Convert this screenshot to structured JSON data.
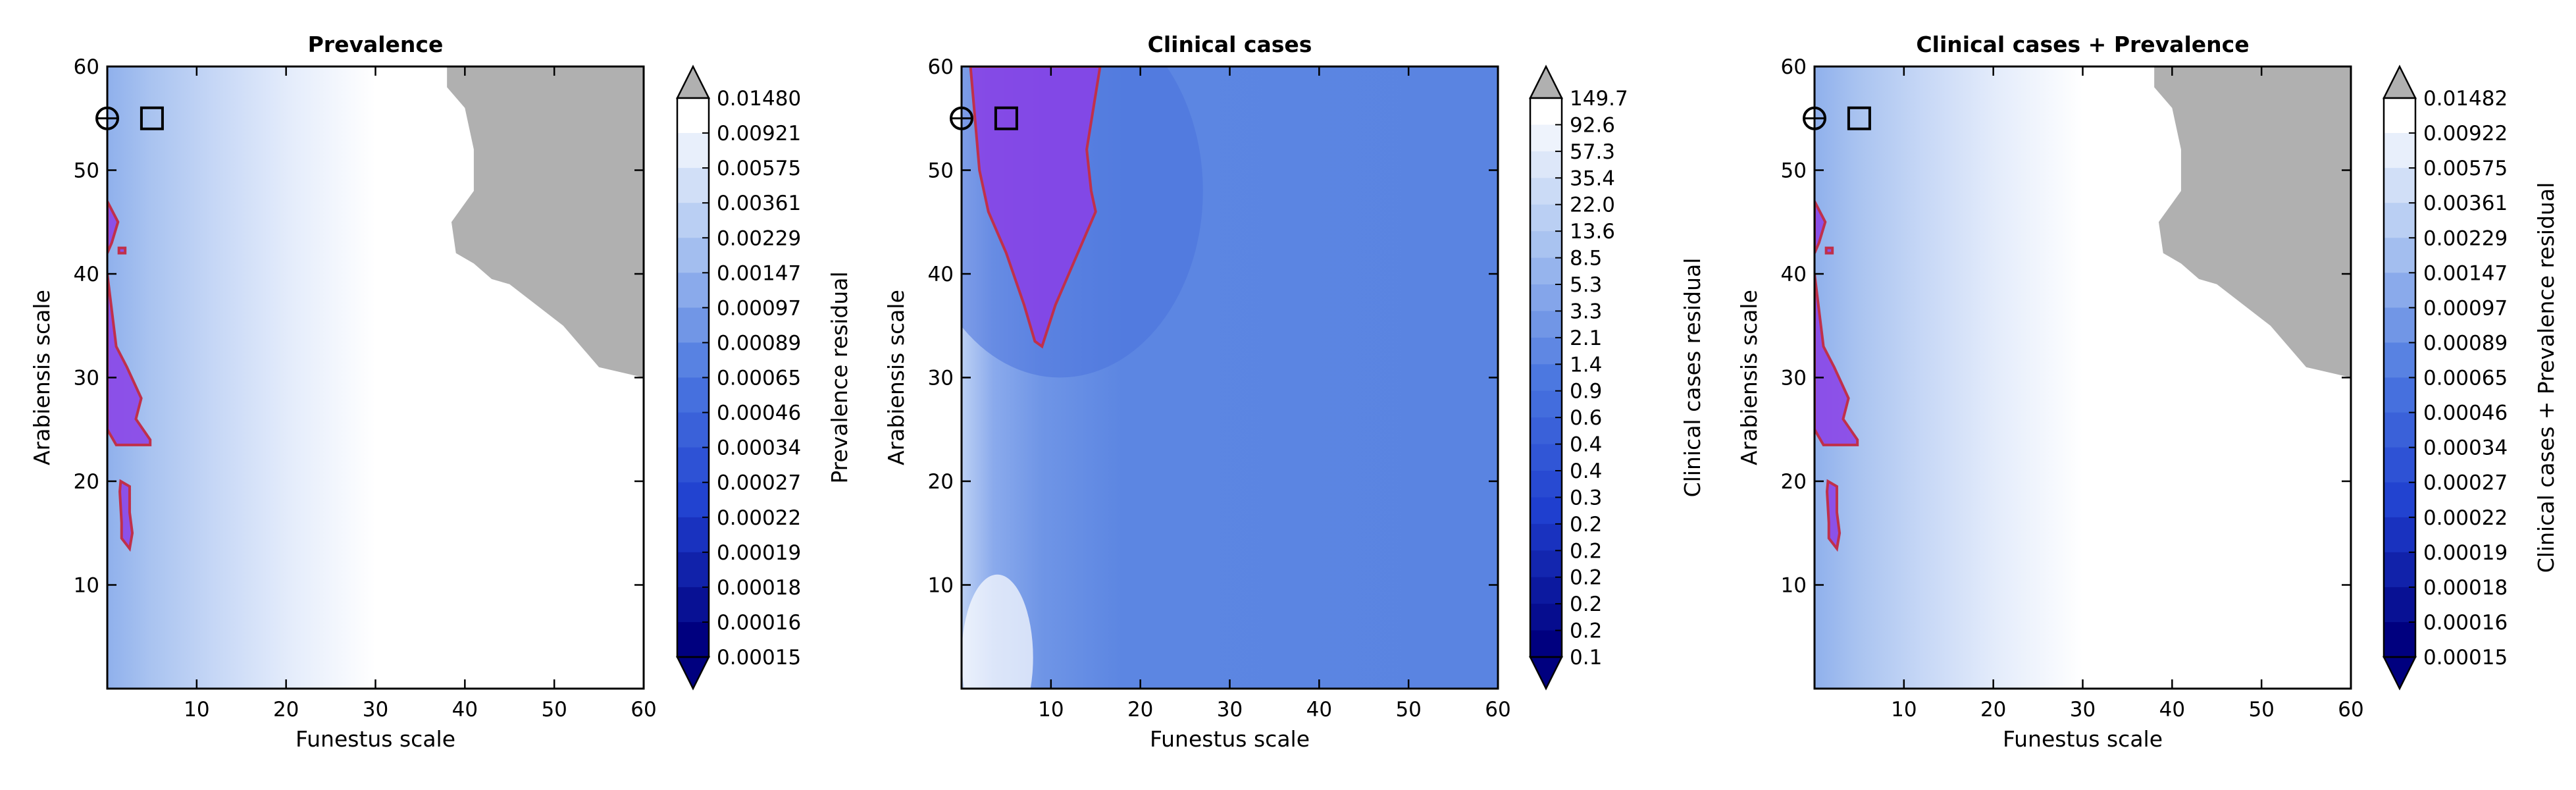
{
  "figure": {
    "colors": {
      "background": "#ffffff",
      "nan_region": "#b0b0b0",
      "overlay_fill": "#8a3ee6",
      "overlay_edge": "#c0304a",
      "frame": "#000000"
    }
  },
  "chart_data": [
    {
      "type": "heatmap",
      "title": "Prevalence",
      "xlabel": "Funestus scale",
      "ylabel": "Arabiensis scale",
      "colorbar_label": "Prevalence residual",
      "xlim": [
        0,
        60
      ],
      "ylim": [
        0,
        60
      ],
      "xticks": [
        10,
        20,
        30,
        40,
        50,
        60
      ],
      "yticks": [
        10,
        20,
        30,
        40,
        50,
        60
      ],
      "colorbar_levels": [
        "0.01480",
        "0.00921",
        "0.00575",
        "0.00361",
        "0.00229",
        "0.00147",
        "0.00097",
        "0.00089",
        "0.00065",
        "0.00046",
        "0.00034",
        "0.00027",
        "0.00022",
        "0.00019",
        "0.00018",
        "0.00016",
        "0.00015"
      ],
      "markers": [
        {
          "shape": "circle-plus",
          "x": 0,
          "y": 55
        },
        {
          "shape": "square",
          "x": 5,
          "y": 55
        }
      ],
      "overlay_regions": [
        [
          [
            0,
            47
          ],
          [
            1.2,
            45
          ],
          [
            0.5,
            43
          ],
          [
            0,
            42
          ]
        ],
        [
          [
            0,
            40
          ],
          [
            1,
            33
          ],
          [
            2.2,
            31
          ],
          [
            3.8,
            28
          ],
          [
            3.2,
            26
          ],
          [
            4.8,
            24
          ],
          [
            4.8,
            23.5
          ],
          [
            1,
            23.5
          ],
          [
            0,
            25
          ]
        ],
        [
          [
            1.5,
            20
          ],
          [
            2.5,
            19.5
          ],
          [
            2.5,
            17
          ],
          [
            2.8,
            15
          ],
          [
            2.5,
            13.5
          ],
          [
            1.6,
            14.5
          ],
          [
            1.6,
            16
          ],
          [
            1.4,
            19
          ]
        ],
        [
          [
            1.3,
            42.5
          ],
          [
            2,
            42.5
          ],
          [
            2,
            42
          ],
          [
            1.3,
            42
          ]
        ]
      ],
      "nan_region": [
        [
          38,
          60
        ],
        [
          60,
          60
        ],
        [
          60,
          30
        ],
        [
          55,
          31
        ],
        [
          51,
          35
        ],
        [
          48,
          37
        ],
        [
          45,
          39
        ],
        [
          43,
          39.5
        ],
        [
          41,
          41
        ],
        [
          39,
          42
        ],
        [
          38.5,
          45
        ],
        [
          41,
          48
        ],
        [
          41,
          52
        ],
        [
          40,
          56
        ],
        [
          38,
          58
        ]
      ]
    },
    {
      "type": "heatmap",
      "title": "Clinical cases",
      "xlabel": "Funestus scale",
      "ylabel": "Arabiensis scale",
      "colorbar_label": "Clinical cases residual",
      "xlim": [
        0,
        60
      ],
      "ylim": [
        0,
        60
      ],
      "xticks": [
        10,
        20,
        30,
        40,
        50,
        60
      ],
      "yticks": [
        10,
        20,
        30,
        40,
        50,
        60
      ],
      "colorbar_levels": [
        "149.7",
        "92.6",
        "57.3",
        "35.4",
        "22.0",
        "13.6",
        "8.5",
        "5.3",
        "3.3",
        "2.1",
        "1.4",
        "0.9",
        "0.6",
        "0.4",
        "0.4",
        "0.3",
        "0.2",
        "0.2",
        "0.2",
        "0.2",
        "0.2",
        "0.1"
      ],
      "markers": [
        {
          "shape": "circle-plus",
          "x": 0,
          "y": 55
        },
        {
          "shape": "square",
          "x": 5,
          "y": 55
        }
      ],
      "overlay_regions": [
        [
          [
            1,
            60
          ],
          [
            15.5,
            60
          ],
          [
            14,
            52
          ],
          [
            14.5,
            48
          ],
          [
            15,
            46
          ],
          [
            12,
            40
          ],
          [
            10.5,
            37
          ],
          [
            9,
            33
          ],
          [
            8.2,
            33.5
          ],
          [
            7,
            37
          ],
          [
            5,
            42
          ],
          [
            3,
            46
          ],
          [
            2,
            50
          ],
          [
            1.5,
            55
          ]
        ]
      ],
      "nan_region": []
    },
    {
      "type": "heatmap",
      "title": "Clinical cases + Prevalence",
      "xlabel": "Funestus scale",
      "ylabel": "Arabiensis scale",
      "colorbar_label": "Clinical cases + Prevalence residual",
      "xlim": [
        0,
        60
      ],
      "ylim": [
        0,
        60
      ],
      "xticks": [
        10,
        20,
        30,
        40,
        50,
        60
      ],
      "yticks": [
        10,
        20,
        30,
        40,
        50,
        60
      ],
      "colorbar_levels": [
        "0.01482",
        "0.00922",
        "0.00575",
        "0.00361",
        "0.00229",
        "0.00147",
        "0.00097",
        "0.00089",
        "0.00065",
        "0.00046",
        "0.00034",
        "0.00027",
        "0.00022",
        "0.00019",
        "0.00018",
        "0.00016",
        "0.00015"
      ],
      "markers": [
        {
          "shape": "circle-plus",
          "x": 0,
          "y": 55
        },
        {
          "shape": "square",
          "x": 5,
          "y": 55
        }
      ],
      "overlay_regions": [
        [
          [
            0,
            47
          ],
          [
            1.2,
            45
          ],
          [
            0.5,
            43
          ],
          [
            0,
            42
          ]
        ],
        [
          [
            0,
            40
          ],
          [
            1,
            33
          ],
          [
            2.2,
            31
          ],
          [
            3.8,
            28
          ],
          [
            3.2,
            26
          ],
          [
            4.8,
            24
          ],
          [
            4.8,
            23.5
          ],
          [
            1,
            23.5
          ],
          [
            0,
            25
          ]
        ],
        [
          [
            1.5,
            20
          ],
          [
            2.5,
            19.5
          ],
          [
            2.5,
            17
          ],
          [
            2.8,
            15
          ],
          [
            2.5,
            13.5
          ],
          [
            1.6,
            14.5
          ],
          [
            1.6,
            16
          ],
          [
            1.4,
            19
          ]
        ],
        [
          [
            1.3,
            42.5
          ],
          [
            2,
            42.5
          ],
          [
            2,
            42
          ],
          [
            1.3,
            42
          ]
        ]
      ],
      "nan_region": [
        [
          38,
          60
        ],
        [
          60,
          60
        ],
        [
          60,
          30
        ],
        [
          55,
          31
        ],
        [
          51,
          35
        ],
        [
          48,
          37
        ],
        [
          45,
          39
        ],
        [
          43,
          39.5
        ],
        [
          41,
          41
        ],
        [
          39,
          42
        ],
        [
          38.5,
          45
        ],
        [
          41,
          48
        ],
        [
          41,
          52
        ],
        [
          40,
          56
        ],
        [
          38,
          58
        ]
      ]
    }
  ]
}
